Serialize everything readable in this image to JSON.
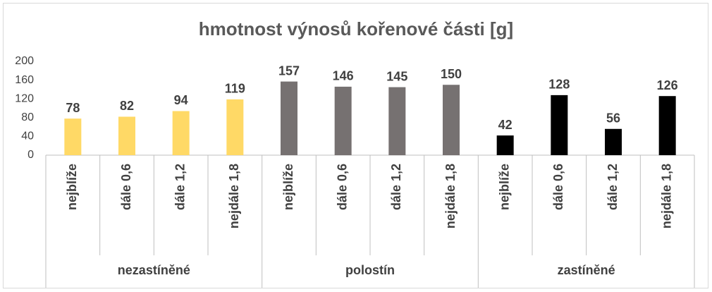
{
  "chart_data": {
    "type": "bar",
    "title": "hmotnost výnosů kořenové části [g]",
    "groups": [
      {
        "name": "nezastíněné",
        "color": "#ffd966",
        "categories": [
          "nejblíže",
          "dále 0,6",
          "dále 1,2",
          "nejdále 1,8"
        ],
        "values": [
          78,
          82,
          94,
          119
        ]
      },
      {
        "name": "polostín",
        "color": "#767171",
        "categories": [
          "nejblíže",
          "dále 0,6",
          "dále 1,2",
          "nejdále 1,8"
        ],
        "values": [
          157,
          146,
          145,
          150
        ]
      },
      {
        "name": "zastíněné",
        "color": "#000000",
        "categories": [
          "nejblíže",
          "dále 0,6",
          "dále 1,2",
          "nejdále 1,8"
        ],
        "values": [
          42,
          128,
          56,
          126
        ]
      }
    ],
    "ylim": [
      0,
      200
    ],
    "yticks": [
      0,
      40,
      80,
      120,
      160,
      200
    ],
    "grid": false
  }
}
